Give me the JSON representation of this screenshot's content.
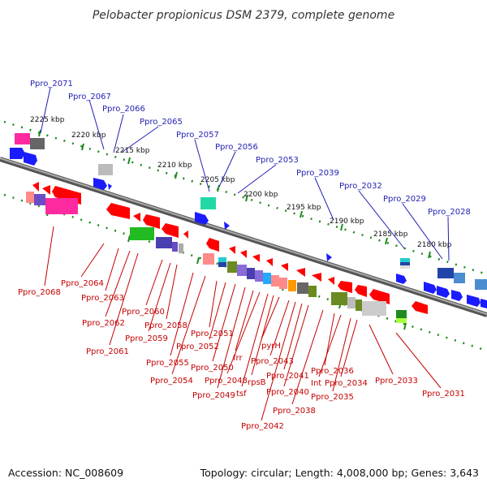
{
  "title": "Pelobacter propionicus DSM 2379, complete genome",
  "footer": {
    "accession": "Accession: NC_008609",
    "summary": "Topology: circular; Length: 4,008,000 bp; Genes: 3,643"
  },
  "scale_labels": [
    "2225 kbp",
    "2220 kbp",
    "2215 kbp",
    "2210 kbp",
    "2205 kbp",
    "2200 kbp",
    "2195 kbp",
    "2190 kbp",
    "2185 kbp",
    "2180 kbp"
  ],
  "forward_labels": [
    "Ppro_2071",
    "Ppro_2067",
    "Ppro_2066",
    "Ppro_2065",
    "Ppro_2057",
    "Ppro_2056",
    "Ppro_2053",
    "Ppro_2039",
    "Ppro_2032",
    "Ppro_2029",
    "Ppro_2028"
  ],
  "reverse_labels": [
    "Ppro_2068",
    "Ppro_2064",
    "Ppro_2063",
    "Ppro_2062",
    "Ppro_2061",
    "Ppro_2060",
    "Ppro_2059",
    "Ppro_2058",
    "Ppro_2055",
    "Ppro_2054",
    "Ppro_2051",
    "Ppro_2052",
    "Ppro_2050",
    "Ppro_2049",
    "frr",
    "Ppro_2048",
    "tsf",
    "rpsB",
    "pyrH",
    "Ppro_2043",
    "Ppro_2042",
    "Ppro_2041",
    "Ppro_2040",
    "Ppro_2038",
    "Ppro_2036",
    "Int",
    "Ppro_2035",
    "Ppro_2034",
    "Ppro_2033",
    "Ppro_2031"
  ],
  "colors": {
    "backbone": "#777777",
    "forward": "#1b1bff",
    "reverse": "#ff0000",
    "label_blue": "#1f1fb4",
    "label_red": "#c40000",
    "tick": "#1f8a1f"
  }
}
